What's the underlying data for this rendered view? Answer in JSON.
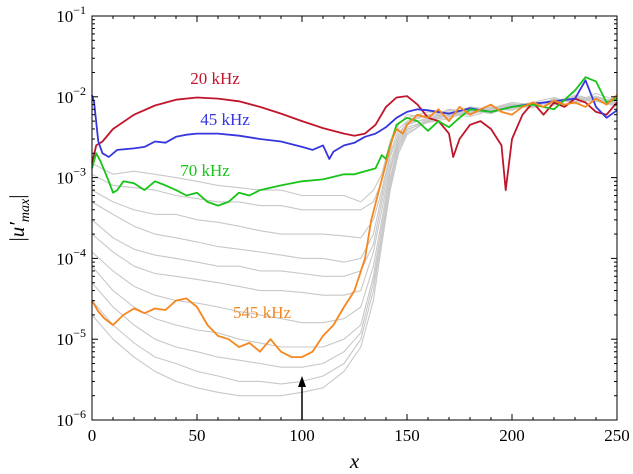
{
  "chart_data": {
    "type": "line",
    "xlabel": "x",
    "ylabel_prefix": "|u′",
    "ylabel_sub": "max",
    "ylabel_suffix": "|",
    "xlim": [
      0,
      250
    ],
    "ylim": [
      1e-06,
      0.1
    ],
    "yscale": "log",
    "grid": false,
    "legend": "none",
    "xticks": [
      0,
      50,
      100,
      150,
      200,
      250
    ],
    "xtick_labels": [
      "0",
      "50",
      "100",
      "150",
      "200",
      "250"
    ],
    "yticks": [
      1e-06,
      1e-05,
      0.0001,
      0.001,
      0.01,
      0.1
    ],
    "ytick_labels": [
      {
        "base": "10",
        "exp": "−6"
      },
      {
        "base": "10",
        "exp": "−5"
      },
      {
        "base": "10",
        "exp": "−4"
      },
      {
        "base": "10",
        "exp": "−3"
      },
      {
        "base": "10",
        "exp": "−2"
      },
      {
        "base": "10",
        "exp": "−1"
      }
    ],
    "annotations": [
      {
        "text": "20 kHz",
        "color": "#c0152a"
      },
      {
        "text": "45 kHz",
        "color": "#3636e0"
      },
      {
        "text": "70 kHz",
        "color": "#19c419"
      },
      {
        "text": "545 kHz",
        "color": "#f5871f"
      }
    ],
    "arrow": {
      "x": 100,
      "y_tail": 1e-06,
      "y_head": 3.5e-06
    },
    "series": [
      {
        "color": "#c0152a",
        "x": [
          0,
          2,
          5,
          10,
          20,
          30,
          40,
          50,
          60,
          70,
          80,
          90,
          100,
          110,
          120,
          125,
          130,
          135,
          140,
          145,
          150,
          155,
          160,
          165,
          170,
          172,
          175,
          180,
          185,
          190,
          195,
          197,
          200,
          205,
          210,
          215,
          220,
          225,
          230,
          235,
          240,
          245,
          250
        ],
        "y": [
          0.0015,
          0.0025,
          0.0028,
          0.004,
          0.006,
          0.0078,
          0.0092,
          0.0098,
          0.0095,
          0.0088,
          0.0075,
          0.0062,
          0.005,
          0.0041,
          0.0035,
          0.0033,
          0.0035,
          0.0045,
          0.0075,
          0.0098,
          0.0102,
          0.008,
          0.0055,
          0.005,
          0.0035,
          0.0018,
          0.003,
          0.0045,
          0.005,
          0.004,
          0.0025,
          0.0007,
          0.003,
          0.006,
          0.0085,
          0.006,
          0.0085,
          0.0075,
          0.0095,
          0.0085,
          0.0065,
          0.006,
          0.0085
        ]
      },
      {
        "color": "#3636e0",
        "x": [
          0,
          1,
          3,
          5,
          8,
          12,
          20,
          25,
          30,
          35,
          40,
          45,
          50,
          60,
          70,
          80,
          90,
          100,
          105,
          110,
          113,
          115,
          120,
          125,
          130,
          135,
          140,
          145,
          150,
          155,
          160,
          170,
          180,
          190,
          200,
          210,
          220,
          230,
          235,
          240,
          245,
          250
        ],
        "y": [
          0.0105,
          0.0085,
          0.0028,
          0.002,
          0.0018,
          0.0022,
          0.0023,
          0.0024,
          0.0028,
          0.0027,
          0.0032,
          0.0034,
          0.0035,
          0.0035,
          0.0033,
          0.003,
          0.0028,
          0.0024,
          0.0022,
          0.0025,
          0.0017,
          0.0021,
          0.0025,
          0.0027,
          0.0032,
          0.0035,
          0.0042,
          0.0055,
          0.0065,
          0.007,
          0.0068,
          0.0062,
          0.0072,
          0.0065,
          0.0075,
          0.0082,
          0.0088,
          0.0095,
          0.016,
          0.0075,
          0.0055,
          0.0068
        ]
      },
      {
        "color": "#19c419",
        "x": [
          0,
          2,
          4,
          6,
          8,
          10,
          12,
          15,
          20,
          25,
          30,
          35,
          40,
          45,
          50,
          55,
          60,
          65,
          70,
          75,
          80,
          90,
          100,
          110,
          120,
          125,
          130,
          135,
          138,
          140,
          145,
          150,
          155,
          160,
          165,
          170,
          175,
          180,
          190,
          200,
          210,
          220,
          230,
          235,
          240,
          245,
          250
        ],
        "y": [
          0.0013,
          0.002,
          0.0016,
          0.0012,
          0.0009,
          0.00065,
          0.0007,
          0.0009,
          0.00085,
          0.0007,
          0.0009,
          0.0008,
          0.0007,
          0.0006,
          0.00065,
          0.0005,
          0.00045,
          0.0005,
          0.00065,
          0.0006,
          0.0007,
          0.0008,
          0.0009,
          0.00095,
          0.0011,
          0.0011,
          0.0012,
          0.0013,
          0.0019,
          0.0017,
          0.0045,
          0.0055,
          0.005,
          0.0038,
          0.005,
          0.0042,
          0.0055,
          0.007,
          0.0065,
          0.0075,
          0.008,
          0.007,
          0.012,
          0.0175,
          0.0155,
          0.0085,
          0.0095
        ]
      },
      {
        "color": "#f5871f",
        "x": [
          0,
          3,
          6,
          10,
          15,
          20,
          25,
          30,
          35,
          40,
          45,
          50,
          55,
          60,
          65,
          70,
          75,
          80,
          85,
          90,
          95,
          100,
          105,
          110,
          115,
          120,
          125,
          130,
          133,
          136,
          140,
          143,
          145,
          148,
          150,
          155,
          160,
          165,
          170,
          175,
          180,
          185,
          190,
          195,
          200,
          205,
          210,
          215,
          220,
          225,
          230,
          235,
          240,
          245,
          250
        ],
        "y": [
          3e-05,
          2.2e-05,
          1.8e-05,
          1.5e-05,
          2e-05,
          2.4e-05,
          2.1e-05,
          2.4e-05,
          2.3e-05,
          3e-05,
          3.2e-05,
          2.5e-05,
          1.5e-05,
          1.1e-05,
          1e-05,
          8e-06,
          9e-06,
          7e-06,
          1e-05,
          7e-06,
          6e-06,
          6e-06,
          7e-06,
          1.1e-05,
          1.5e-05,
          2.5e-05,
          4e-05,
          0.0001,
          0.0003,
          0.0006,
          0.0015,
          0.003,
          0.004,
          0.0035,
          0.0045,
          0.006,
          0.0055,
          0.007,
          0.005,
          0.0075,
          0.006,
          0.007,
          0.008,
          0.0065,
          0.006,
          0.0075,
          0.0085,
          0.0075,
          0.009,
          0.008,
          0.0085,
          0.0075,
          0.0095,
          0.008,
          0.0105
        ]
      }
    ],
    "background_series": [
      {
        "color": "#c8c8c8",
        "x": [
          0,
          10,
          20,
          30,
          40,
          50,
          60,
          70,
          80,
          90,
          100,
          110,
          120,
          128,
          134,
          138,
          142,
          146,
          150,
          160,
          170,
          180,
          190,
          200,
          210,
          220,
          230,
          240,
          250
        ],
        "y": [
          0.0015,
          0.0011,
          0.0012,
          0.0011,
          0.001,
          0.0009,
          0.0008,
          0.00075,
          0.0007,
          0.0007,
          0.0006,
          0.0006,
          0.0006,
          0.0005,
          0.0007,
          0.0011,
          0.0028,
          0.0048,
          0.0055,
          0.0065,
          0.006,
          0.0075,
          0.007,
          0.008,
          0.0075,
          0.0095,
          0.0085,
          0.011,
          0.009
        ]
      },
      {
        "color": "#c8c8c8",
        "x": [
          0,
          10,
          20,
          30,
          40,
          50,
          60,
          70,
          80,
          90,
          100,
          110,
          120,
          128,
          134,
          138,
          142,
          146,
          150,
          160,
          170,
          180,
          190,
          200,
          210,
          220,
          230,
          240,
          250
        ],
        "y": [
          0.0011,
          0.0008,
          0.00075,
          0.0007,
          0.0006,
          0.00055,
          0.0005,
          0.0005,
          0.00045,
          0.00045,
          0.0004,
          0.0004,
          0.0004,
          0.0004,
          0.0005,
          0.0009,
          0.0025,
          0.0045,
          0.006,
          0.0055,
          0.007,
          0.0065,
          0.0072,
          0.0085,
          0.008,
          0.0088,
          0.0095,
          0.0098,
          0.0082
        ]
      },
      {
        "color": "#c8c8c8",
        "x": [
          0,
          10,
          20,
          30,
          40,
          50,
          60,
          70,
          80,
          90,
          100,
          110,
          120,
          128,
          134,
          138,
          142,
          146,
          150,
          160,
          170,
          180,
          190,
          200,
          210,
          220,
          230,
          240,
          250
        ],
        "y": [
          0.0007,
          0.0005,
          0.0004,
          0.00035,
          0.00035,
          0.0003,
          0.00028,
          0.00025,
          0.00022,
          0.0002,
          0.0002,
          0.0002,
          0.00019,
          0.00018,
          0.0003,
          0.0007,
          0.002,
          0.004,
          0.005,
          0.006,
          0.0058,
          0.007,
          0.0066,
          0.0078,
          0.0074,
          0.009,
          0.0088,
          0.0092,
          0.0078
        ]
      },
      {
        "color": "#c8c8c8",
        "x": [
          0,
          10,
          20,
          30,
          40,
          50,
          60,
          70,
          80,
          90,
          100,
          110,
          120,
          128,
          134,
          138,
          142,
          146,
          150,
          160,
          170,
          180,
          190,
          200,
          210,
          220,
          230,
          240,
          250
        ],
        "y": [
          0.0005,
          0.00035,
          0.00025,
          0.0002,
          0.00018,
          0.00016,
          0.00014,
          0.00013,
          0.00012,
          0.00011,
          0.0001,
          0.0001,
          9e-05,
          0.0001,
          0.0002,
          0.0006,
          0.0018,
          0.0035,
          0.0048,
          0.0052,
          0.0068,
          0.0062,
          0.0075,
          0.0072,
          0.0086,
          0.0082,
          0.0098,
          0.0088,
          0.0076
        ]
      },
      {
        "color": "#c8c8c8",
        "x": [
          0,
          10,
          20,
          30,
          40,
          50,
          60,
          70,
          80,
          90,
          100,
          110,
          120,
          128,
          134,
          138,
          142,
          146,
          150,
          160,
          170,
          180,
          190,
          200,
          210,
          220,
          230,
          240,
          250
        ],
        "y": [
          0.0003,
          0.00018,
          0.00013,
          0.00011,
          0.0001,
          9e-05,
          8e-05,
          8e-05,
          7e-05,
          7e-05,
          6.5e-05,
          6e-05,
          6e-05,
          7e-05,
          0.00015,
          0.0005,
          0.0015,
          0.0032,
          0.005,
          0.0058,
          0.0062,
          0.0068,
          0.0062,
          0.0078,
          0.0085,
          0.0078,
          0.0105,
          0.0092,
          0.0088
        ]
      },
      {
        "color": "#c8c8c8",
        "x": [
          0,
          10,
          20,
          30,
          40,
          50,
          60,
          70,
          80,
          90,
          100,
          110,
          120,
          128,
          134,
          138,
          142,
          146,
          150,
          160,
          170,
          180,
          190,
          200,
          210,
          220,
          230,
          240,
          250
        ],
        "y": [
          0.0002,
          0.00012,
          8e-05,
          6.5e-05,
          6e-05,
          5.5e-05,
          5e-05,
          4.5e-05,
          4e-05,
          4e-05,
          3.8e-05,
          3.5e-05,
          3.5e-05,
          4e-05,
          0.00012,
          0.0004,
          0.0013,
          0.003,
          0.0045,
          0.0055,
          0.0058,
          0.0064,
          0.007,
          0.0082,
          0.0076,
          0.0094,
          0.0086,
          0.0102,
          0.0084
        ]
      },
      {
        "color": "#c8c8c8",
        "x": [
          0,
          10,
          20,
          30,
          40,
          50,
          60,
          70,
          80,
          90,
          100,
          110,
          120,
          128,
          134,
          138,
          142,
          146,
          150,
          160,
          170,
          180,
          190,
          200,
          210,
          220,
          230,
          240,
          250
        ],
        "y": [
          0.00012,
          7e-05,
          4.5e-05,
          3.5e-05,
          3e-05,
          2.8e-05,
          2.5e-05,
          2.2e-05,
          2e-05,
          1.8e-05,
          1.6e-05,
          1.6e-05,
          1.8e-05,
          2.5e-05,
          8e-05,
          0.0003,
          0.0012,
          0.0028,
          0.0042,
          0.005,
          0.0065,
          0.006,
          0.0072,
          0.0068,
          0.0085,
          0.0098,
          0.0082,
          0.0096,
          0.008
        ]
      },
      {
        "color": "#c8c8c8",
        "x": [
          0,
          10,
          20,
          30,
          40,
          50,
          60,
          70,
          80,
          90,
          100,
          110,
          120,
          128,
          134,
          138,
          142,
          146,
          150,
          160,
          170,
          180,
          190,
          200,
          210,
          220,
          230,
          240,
          250
        ],
        "y": [
          8e-05,
          4e-05,
          2.5e-05,
          1.8e-05,
          1.5e-05,
          1.3e-05,
          1.2e-05,
          1e-05,
          9e-06,
          8e-06,
          8e-06,
          8e-06,
          1e-05,
          1.5e-05,
          6e-05,
          0.00025,
          0.001,
          0.0026,
          0.004,
          0.0048,
          0.0054,
          0.0066,
          0.0064,
          0.0074,
          0.0079,
          0.0088,
          0.0092,
          0.0087,
          0.0095
        ]
      },
      {
        "color": "#c8c8c8",
        "x": [
          0,
          10,
          20,
          30,
          40,
          50,
          60,
          70,
          80,
          90,
          100,
          110,
          120,
          128,
          134,
          138,
          142,
          146,
          150,
          160,
          170,
          180,
          190,
          200,
          210,
          220,
          230,
          240,
          250
        ],
        "y": [
          5e-05,
          2.5e-05,
          1.5e-05,
          1e-05,
          8e-06,
          7e-06,
          6e-06,
          5.5e-06,
          5e-06,
          4.5e-06,
          4.5e-06,
          5e-06,
          7e-06,
          1.2e-05,
          5e-05,
          0.0002,
          0.0009,
          0.0024,
          0.0038,
          0.0053,
          0.0059,
          0.0063,
          0.0075,
          0.0069,
          0.0084,
          0.0079,
          0.0097,
          0.0091,
          0.0083
        ]
      },
      {
        "color": "#c8c8c8",
        "x": [
          0,
          10,
          20,
          30,
          40,
          50,
          60,
          70,
          80,
          90,
          100,
          110,
          120,
          128,
          134,
          138,
          142,
          146,
          150,
          160,
          170,
          180,
          190,
          200,
          210,
          220,
          230,
          240,
          250
        ],
        "y": [
          3e-05,
          1.5e-05,
          9e-06,
          6e-06,
          5e-06,
          4e-06,
          3.5e-06,
          3e-06,
          3e-06,
          2.8e-06,
          3e-06,
          3.5e-06,
          5e-06,
          1e-05,
          4e-05,
          0.00018,
          0.0008,
          0.0022,
          0.0036,
          0.0049,
          0.0061,
          0.0057,
          0.0068,
          0.0077,
          0.0073,
          0.0093,
          0.0087,
          0.0099,
          0.0086
        ]
      },
      {
        "color": "#c8c8c8",
        "x": [
          0,
          10,
          20,
          30,
          40,
          50,
          60,
          70,
          80,
          90,
          100,
          110,
          120,
          128,
          134,
          138,
          142,
          146,
          150,
          160,
          170,
          180,
          190,
          200,
          210,
          220,
          230,
          240,
          250
        ],
        "y": [
          2e-05,
          1e-05,
          6e-06,
          4e-06,
          3e-06,
          2.5e-06,
          2.2e-06,
          2e-06,
          2e-06,
          2e-06,
          2.2e-06,
          2.5e-06,
          4e-06,
          8e-06,
          3e-05,
          0.00015,
          0.0007,
          0.002,
          0.0034,
          0.0051,
          0.0056,
          0.0071,
          0.0066,
          0.008,
          0.0077,
          0.0089,
          0.0101,
          0.009,
          0.0094
        ]
      }
    ]
  }
}
